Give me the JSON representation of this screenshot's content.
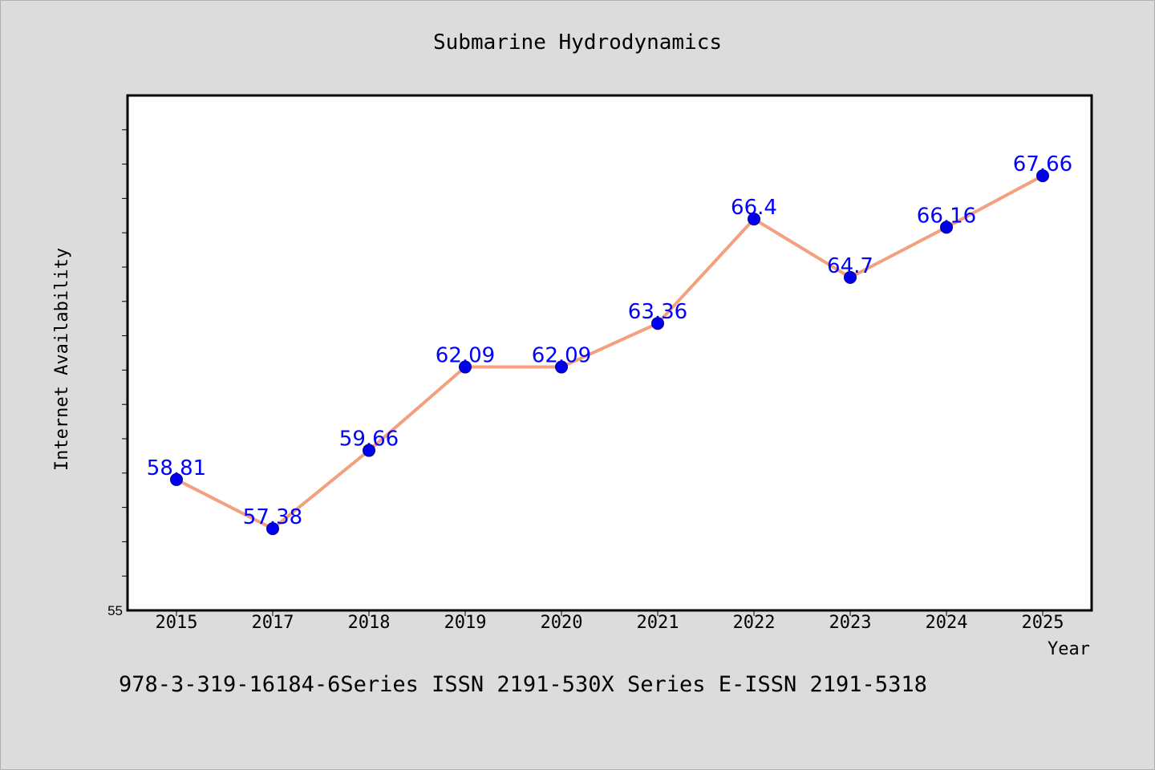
{
  "colors": {
    "background": "#dcdcdc",
    "plot_background": "#ffffff",
    "line": "#f4a07e",
    "marker": "#0000ee",
    "data_label": "#0000ff"
  },
  "footer": "978-3-319-16184-6Series ISSN 2191-530X Series E-ISSN 2191-5318",
  "chart_data": {
    "type": "line",
    "title": "Submarine Hydrodynamics",
    "xlabel": "Year",
    "ylabel": "Internet Availability",
    "categories": [
      "2015",
      "2017",
      "2018",
      "2019",
      "2020",
      "2021",
      "2022",
      "2023",
      "2024",
      "2025"
    ],
    "series": [
      {
        "values": [
          58.81,
          57.38,
          59.66,
          62.09,
          62.09,
          63.36,
          66.4,
          64.7,
          66.16,
          67.66
        ],
        "labels": [
          "58.81",
          "57.38",
          "59.66",
          "62.09",
          "62.09",
          "63.36",
          "66.4",
          "64.7",
          "66.16",
          "67.66"
        ]
      }
    ],
    "ylim": [
      55,
      70
    ],
    "yticks": [
      {
        "value": 55,
        "label": "55"
      }
    ],
    "y_minor_step": 1,
    "grid": false,
    "legend": "none"
  }
}
